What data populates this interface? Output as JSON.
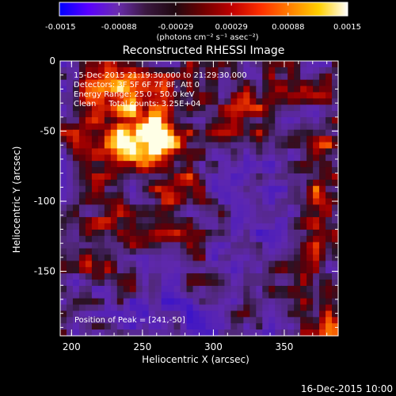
{
  "colorbar": {
    "tick_labels": [
      "-0.0015",
      "-0.00088",
      "-0.00029",
      "0.00029",
      "0.00088",
      "0.0015"
    ],
    "unit_label": "(photons cm⁻² s⁻¹ asec⁻²)",
    "range": [
      -0.0015,
      0.0015
    ],
    "colors": [
      "#0000ff",
      "#5a00ff",
      "#6a2cb0",
      "#3a1840",
      "#200810",
      "#700000",
      "#c00000",
      "#ff3000",
      "#ff8000",
      "#ffd000",
      "#ffffff"
    ]
  },
  "title": "Reconstructed RHESSI Image",
  "info": {
    "line1": "15-Dec-2015 21:19:30.000 to 21:29:30.000",
    "line2": "Detectors: 3F 5F 6F 7F 8F, Att 0",
    "line3": "Energy Range: 25.0 - 50.0 keV",
    "line4": "Clean     Total counts: 3.25E+04"
  },
  "peak_label": "Position of Peak = [241,-50]",
  "footer_date": "16-Dec-2015 10:00",
  "chart_data": {
    "type": "heatmap",
    "title": "Reconstructed RHESSI Image",
    "xlabel": "Heliocentric X (arcsec)",
    "ylabel": "Heliocentric Y (arcsec)",
    "xlim": [
      192,
      388
    ],
    "ylim": [
      -196,
      0
    ],
    "x_ticks": [
      200,
      250,
      300,
      350
    ],
    "y_ticks": [
      0,
      -50,
      -100,
      -150
    ],
    "peak": {
      "x": 241,
      "y": -50
    },
    "colorbar_range": [
      -0.0015,
      0.0015
    ]
  }
}
